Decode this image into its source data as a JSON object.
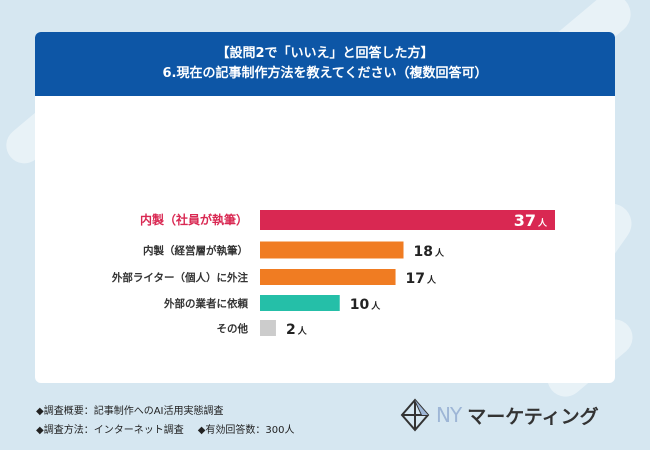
{
  "header": {
    "line1": "【設問2で「いいえ」と回答した方】",
    "line2": "6.現在の記事制作方法を教えてください（複数回答可）"
  },
  "chart_data": {
    "type": "bar",
    "orientation": "horizontal",
    "unit": "人",
    "categories": [
      "内製（社員が執筆）",
      "内製（経営層が執筆）",
      "外部ライター（個人）に外注",
      "外部の業者に依頼",
      "その他"
    ],
    "values": [
      37,
      18,
      17,
      10,
      2
    ],
    "colors": [
      "#d92852",
      "#f07c22",
      "#f07c22",
      "#25bfa8",
      "#cccccc"
    ],
    "highlight_label_color": "#d92852",
    "grid": false
  },
  "footer": {
    "line1": "◆調査概要：記事制作へのAI活用実態調査",
    "line2a": "◆調査方法：インターネット調査",
    "line2b": "◆有効回答数：300人"
  },
  "logo": {
    "ny": "NY",
    "text": "マーケティング"
  }
}
